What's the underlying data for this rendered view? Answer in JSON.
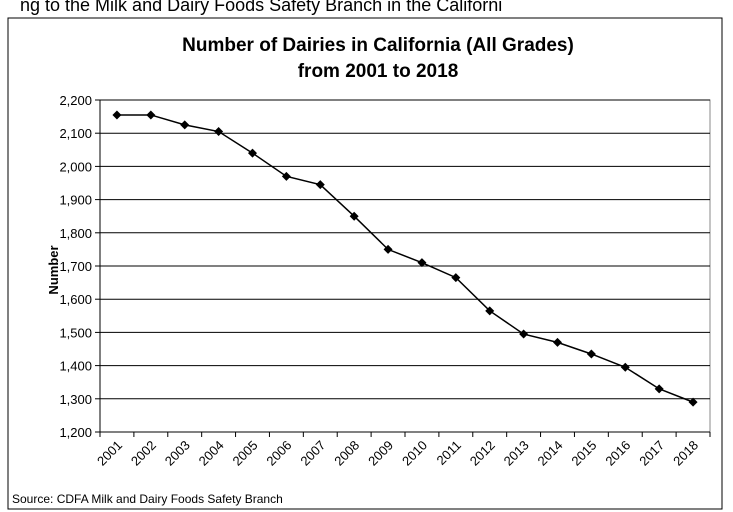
{
  "header_text": "ng to the Milk and Dairy Foods Safety Branch in the Californi",
  "chart_data": {
    "type": "line",
    "title": [
      "Number of Dairies in California (All Grades)",
      "from 2001 to 2018"
    ],
    "ylabel": "Number",
    "source": "Source: CDFA Milk and Dairy Foods Safety Branch",
    "categories": [
      "2001",
      "2002",
      "2003",
      "2004",
      "2005",
      "2006",
      "2007",
      "2008",
      "2009",
      "2010",
      "2011",
      "2012",
      "2013",
      "2014",
      "2015",
      "2016",
      "2017",
      "2018"
    ],
    "series": [
      {
        "name": "Number",
        "color": "#000000",
        "values": [
          2155,
          2155,
          2125,
          2105,
          2040,
          1970,
          1945,
          1850,
          1750,
          1710,
          1665,
          1565,
          1495,
          1470,
          1435,
          1395,
          1330,
          1290
        ]
      }
    ],
    "ylim": [
      1200,
      2200
    ],
    "yticks": [
      {
        "value": 1200,
        "label": "1,200"
      },
      {
        "value": 1300,
        "label": "1,300"
      },
      {
        "value": 1400,
        "label": "1,400"
      },
      {
        "value": 1500,
        "label": "1,500"
      },
      {
        "value": 1600,
        "label": "1,600"
      },
      {
        "value": 1700,
        "label": "1,700"
      },
      {
        "value": 1800,
        "label": "1,800"
      },
      {
        "value": 1900,
        "label": "1,900"
      },
      {
        "value": 2000,
        "label": "2,000"
      },
      {
        "value": 2100,
        "label": "2,100"
      },
      {
        "value": 2200,
        "label": "2,200"
      }
    ],
    "grid": true
  }
}
